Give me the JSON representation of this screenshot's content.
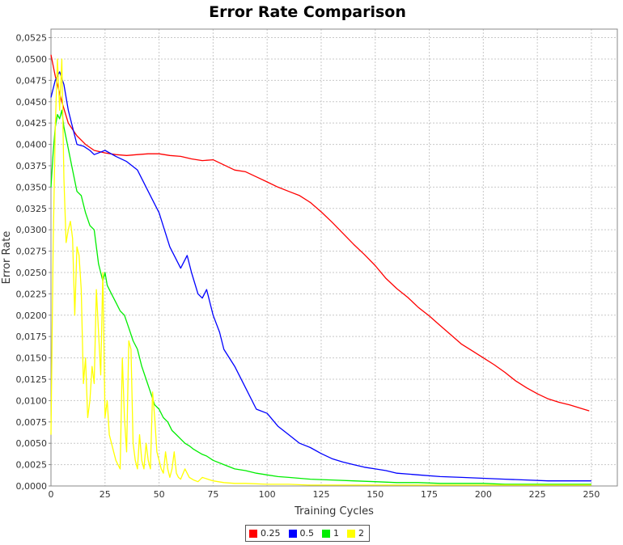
{
  "chart_data": {
    "type": "line",
    "title": "Error Rate Comparison",
    "xlabel": "Training Cycles",
    "ylabel": "Error Rate",
    "xlim": [
      0,
      262
    ],
    "ylim": [
      0,
      0.0535
    ],
    "x_ticks": [
      "0",
      "25",
      "50",
      "75",
      "100",
      "125",
      "150",
      "175",
      "200",
      "225",
      "250"
    ],
    "y_ticks": [
      "0,0000",
      "0,0025",
      "0,0050",
      "0,0075",
      "0,0100",
      "0,0125",
      "0,0150",
      "0,0175",
      "0,0200",
      "0,0225",
      "0,0250",
      "0,0275",
      "0,0300",
      "0,0325",
      "0,0350",
      "0,0375",
      "0,0400",
      "0,0425",
      "0,0450",
      "0,0475",
      "0,0500",
      "0,0525"
    ],
    "grid": true,
    "legend_position": "bottom-center",
    "series": [
      {
        "name": "0.25",
        "color": "#ff0000",
        "x": [
          0,
          2,
          5,
          8,
          12,
          16,
          20,
          25,
          30,
          35,
          40,
          45,
          50,
          55,
          60,
          65,
          70,
          75,
          80,
          85,
          90,
          95,
          100,
          105,
          110,
          115,
          120,
          125,
          130,
          135,
          140,
          145,
          150,
          155,
          160,
          165,
          170,
          175,
          180,
          185,
          190,
          195,
          200,
          205,
          210,
          215,
          220,
          225,
          230,
          235,
          240,
          245,
          249
        ],
        "y": [
          0.0505,
          0.048,
          0.045,
          0.0425,
          0.041,
          0.04,
          0.0393,
          0.039,
          0.0388,
          0.0387,
          0.0388,
          0.0389,
          0.0389,
          0.0387,
          0.0386,
          0.0383,
          0.0381,
          0.0382,
          0.0376,
          0.037,
          0.0368,
          0.0362,
          0.0356,
          0.035,
          0.0345,
          0.034,
          0.0332,
          0.0321,
          0.0309,
          0.0296,
          0.0283,
          0.0271,
          0.0258,
          0.0243,
          0.0231,
          0.0221,
          0.0209,
          0.0199,
          0.0188,
          0.0177,
          0.0166,
          0.0158,
          0.015,
          0.0142,
          0.0133,
          0.0123,
          0.0115,
          0.0108,
          0.0102,
          0.0098,
          0.0095,
          0.0091,
          0.0088
        ]
      },
      {
        "name": "0.5",
        "color": "#0000ff",
        "x": [
          0,
          2,
          4,
          6,
          8,
          10,
          12,
          15,
          18,
          20,
          25,
          30,
          35,
          40,
          45,
          50,
          55,
          60,
          63,
          65,
          68,
          70,
          72,
          75,
          78,
          80,
          85,
          90,
          95,
          100,
          105,
          110,
          115,
          120,
          125,
          130,
          135,
          140,
          145,
          150,
          155,
          160,
          170,
          180,
          190,
          200,
          210,
          220,
          230,
          240,
          250
        ],
        "y": [
          0.0455,
          0.0475,
          0.0485,
          0.047,
          0.044,
          0.042,
          0.04,
          0.0398,
          0.0393,
          0.0388,
          0.0393,
          0.0386,
          0.038,
          0.037,
          0.0345,
          0.032,
          0.028,
          0.0255,
          0.027,
          0.025,
          0.0225,
          0.022,
          0.023,
          0.02,
          0.018,
          0.016,
          0.014,
          0.0115,
          0.009,
          0.0085,
          0.007,
          0.006,
          0.005,
          0.0045,
          0.0038,
          0.0032,
          0.0028,
          0.0025,
          0.0022,
          0.002,
          0.0018,
          0.0015,
          0.0013,
          0.0011,
          0.001,
          0.0009,
          0.0008,
          0.0007,
          0.0006,
          0.0006,
          0.0006
        ]
      },
      {
        "name": "1",
        "color": "#00ee00",
        "x": [
          0,
          1,
          2,
          3,
          4,
          5,
          6,
          8,
          10,
          12,
          14,
          16,
          18,
          20,
          22,
          24,
          25,
          26,
          28,
          30,
          32,
          34,
          36,
          38,
          40,
          42,
          44,
          46,
          48,
          50,
          52,
          54,
          56,
          58,
          60,
          62,
          64,
          66,
          68,
          70,
          72,
          75,
          80,
          85,
          90,
          95,
          100,
          105,
          110,
          120,
          130,
          140,
          150,
          160,
          170,
          180,
          190,
          200,
          210,
          220,
          230,
          240,
          250
        ],
        "y": [
          0.035,
          0.039,
          0.042,
          0.0435,
          0.043,
          0.044,
          0.042,
          0.0395,
          0.037,
          0.0345,
          0.034,
          0.032,
          0.0305,
          0.03,
          0.026,
          0.024,
          0.025,
          0.0235,
          0.0225,
          0.0215,
          0.0205,
          0.02,
          0.0185,
          0.017,
          0.016,
          0.014,
          0.0125,
          0.011,
          0.0095,
          0.009,
          0.008,
          0.0075,
          0.0065,
          0.006,
          0.0055,
          0.005,
          0.0047,
          0.0043,
          0.004,
          0.0037,
          0.0035,
          0.003,
          0.0025,
          0.002,
          0.0018,
          0.0015,
          0.0013,
          0.0011,
          0.001,
          0.0008,
          0.0007,
          0.0006,
          0.0005,
          0.0004,
          0.0004,
          0.0003,
          0.0003,
          0.0003,
          0.0002,
          0.0002,
          0.0002,
          0.0002,
          0.0002
        ]
      },
      {
        "name": "2",
        "color": "#ffff00",
        "x": [
          0,
          1,
          2,
          3,
          4,
          5,
          6,
          7,
          8,
          9,
          10,
          11,
          12,
          13,
          14,
          15,
          16,
          17,
          18,
          19,
          20,
          21,
          22,
          23,
          24,
          25,
          26,
          27,
          28,
          29,
          30,
          31,
          32,
          33,
          34,
          35,
          36,
          37,
          38,
          39,
          40,
          41,
          42,
          43,
          44,
          45,
          46,
          47,
          48,
          49,
          50,
          51,
          52,
          53,
          54,
          55,
          56,
          57,
          58,
          59,
          60,
          62,
          64,
          66,
          68,
          70,
          75,
          80,
          85,
          90,
          100,
          110,
          120,
          130,
          140,
          150,
          175,
          200,
          225,
          250
        ],
        "y": [
          0.006,
          0.028,
          0.042,
          0.05,
          0.044,
          0.05,
          0.036,
          0.0285,
          0.03,
          0.031,
          0.029,
          0.02,
          0.028,
          0.027,
          0.023,
          0.012,
          0.015,
          0.008,
          0.01,
          0.014,
          0.012,
          0.023,
          0.018,
          0.013,
          0.025,
          0.008,
          0.01,
          0.006,
          0.005,
          0.004,
          0.003,
          0.0025,
          0.002,
          0.015,
          0.008,
          0.004,
          0.017,
          0.016,
          0.005,
          0.003,
          0.002,
          0.006,
          0.003,
          0.002,
          0.005,
          0.003,
          0.002,
          0.011,
          0.008,
          0.004,
          0.003,
          0.002,
          0.0015,
          0.004,
          0.002,
          0.001,
          0.002,
          0.004,
          0.0015,
          0.001,
          0.0008,
          0.002,
          0.001,
          0.0007,
          0.0005,
          0.001,
          0.0006,
          0.0004,
          0.0003,
          0.0003,
          0.0002,
          0.0002,
          0.0001,
          0.0001,
          0.0001,
          0.0001,
          0.0001,
          0.0001,
          0.0001,
          0.0001
        ]
      }
    ]
  }
}
